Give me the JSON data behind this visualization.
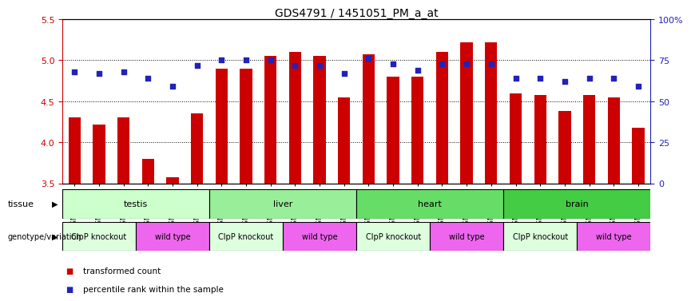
{
  "title": "GDS4791 / 1451051_PM_a_at",
  "samples": [
    "GSM988357",
    "GSM988358",
    "GSM988359",
    "GSM988360",
    "GSM988361",
    "GSM988362",
    "GSM988363",
    "GSM988364",
    "GSM988365",
    "GSM988366",
    "GSM988367",
    "GSM988368",
    "GSM988381",
    "GSM988382",
    "GSM988383",
    "GSM988384",
    "GSM988385",
    "GSM988386",
    "GSM988375",
    "GSM988376",
    "GSM988377",
    "GSM988378",
    "GSM988379",
    "GSM988380"
  ],
  "bar_values": [
    4.3,
    4.22,
    4.3,
    3.8,
    3.57,
    4.35,
    4.9,
    4.9,
    5.05,
    5.1,
    5.05,
    4.55,
    5.07,
    4.8,
    4.8,
    5.1,
    5.22,
    5.22,
    4.6,
    4.58,
    4.38,
    4.58,
    4.55,
    4.18
  ],
  "dot_percentiles": [
    68,
    67,
    68,
    64,
    59,
    72,
    75,
    75,
    75,
    72,
    72,
    67,
    76,
    73,
    69,
    73,
    73,
    73,
    64,
    64,
    62,
    64,
    64,
    59
  ],
  "ylim": [
    3.5,
    5.5
  ],
  "yticks_left": [
    3.5,
    4.0,
    4.5,
    5.0,
    5.5
  ],
  "yticks_right": [
    0,
    25,
    50,
    75,
    100
  ],
  "bar_color": "#cc0000",
  "dot_color": "#2222bb",
  "bg_color": "#ffffff",
  "tick_color_left": "#cc0000",
  "tick_color_right": "#2222bb",
  "bar_width": 0.5,
  "title_fontsize": 10,
  "axis_fontsize": 8,
  "xtick_fontsize": 6,
  "tissues": [
    {
      "label": "testis",
      "start": 0,
      "end": 6,
      "color": "#ccffcc"
    },
    {
      "label": "liver",
      "start": 6,
      "end": 12,
      "color": "#99ee99"
    },
    {
      "label": "heart",
      "start": 12,
      "end": 18,
      "color": "#66dd66"
    },
    {
      "label": "brain",
      "start": 18,
      "end": 24,
      "color": "#44cc44"
    }
  ],
  "genotypes": [
    {
      "label": "ClpP knockout",
      "start": 0,
      "end": 3,
      "color": "#ddffdd"
    },
    {
      "label": "wild type",
      "start": 3,
      "end": 6,
      "color": "#ee66ee"
    },
    {
      "label": "ClpP knockout",
      "start": 6,
      "end": 9,
      "color": "#ddffdd"
    },
    {
      "label": "wild type",
      "start": 9,
      "end": 12,
      "color": "#ee66ee"
    },
    {
      "label": "ClpP knockout",
      "start": 12,
      "end": 15,
      "color": "#ddffdd"
    },
    {
      "label": "wild type",
      "start": 15,
      "end": 18,
      "color": "#ee66ee"
    },
    {
      "label": "ClpP knockout",
      "start": 18,
      "end": 21,
      "color": "#ddffdd"
    },
    {
      "label": "wild type",
      "start": 21,
      "end": 24,
      "color": "#ee66ee"
    }
  ],
  "legend": [
    {
      "label": "transformed count",
      "color": "#cc0000"
    },
    {
      "label": "percentile rank within the sample",
      "color": "#2222bb"
    }
  ]
}
